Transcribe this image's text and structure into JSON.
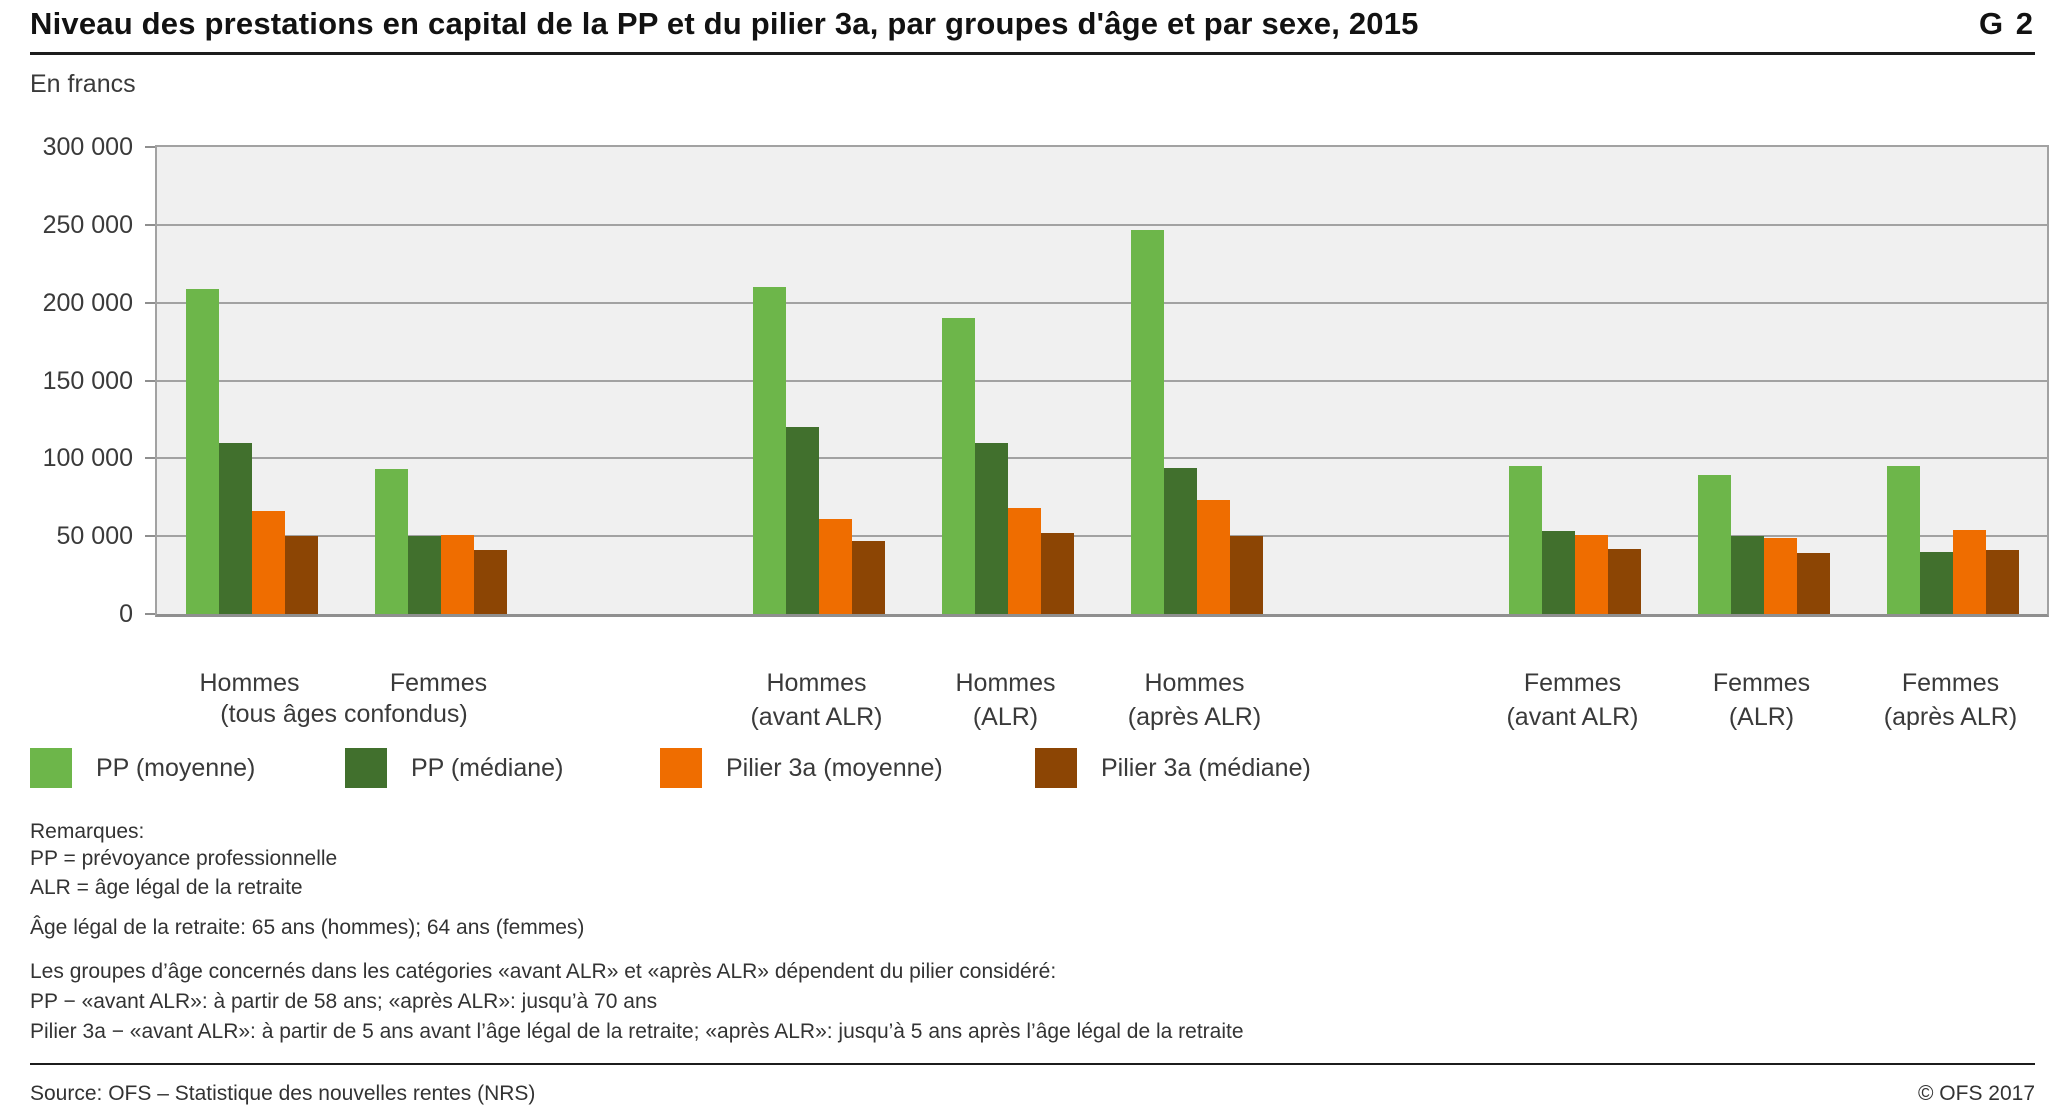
{
  "header": {
    "title": "Niveau des prestations en capital de la PP et du pilier 3a, par groupes d'âge et par sexe, 2015",
    "graph_id": "G 2"
  },
  "chart_data": {
    "type": "bar",
    "title": "Niveau des prestations en capital de la PP et du pilier 3a, par groupes d'âge et par sexe, 2015",
    "unit_label": "En francs",
    "ylim": [
      0,
      300000
    ],
    "ytick_step": 50000,
    "ytick_labels": [
      "0",
      "50 000",
      "100 000",
      "150 000",
      "200 000",
      "250 000",
      "300 000"
    ],
    "grid": true,
    "legend_position": "bottom",
    "plot_background": "#f0f0f0",
    "series": [
      {
        "name": "PP (moyenne)",
        "color": "#6db64a"
      },
      {
        "name": "PP (médiane)",
        "color": "#41702d"
      },
      {
        "name": "Pilier 3a (moyenne)",
        "color": "#ef6d00"
      },
      {
        "name": "Pilier 3a (médiane)",
        "color": "#8c4504"
      }
    ],
    "slots": 10,
    "groups": [
      {
        "slot": 0,
        "label": "Hommes",
        "sublabel": "",
        "values": [
          209000,
          110000,
          66000,
          50000
        ]
      },
      {
        "slot": 1,
        "label": "Femmes",
        "sublabel": "",
        "values": [
          93000,
          50000,
          51000,
          41000
        ]
      },
      {
        "slot": 3,
        "label": "Hommes",
        "sublabel": "(avant ALR)",
        "values": [
          210000,
          120000,
          61000,
          47000
        ]
      },
      {
        "slot": 4,
        "label": "Hommes",
        "sublabel": "(ALR)",
        "values": [
          190000,
          110000,
          68000,
          52000
        ]
      },
      {
        "slot": 5,
        "label": "Hommes",
        "sublabel": "(après ALR)",
        "values": [
          247000,
          94000,
          73000,
          50000
        ]
      },
      {
        "slot": 7,
        "label": "Femmes",
        "sublabel": "(avant ALR)",
        "values": [
          95000,
          53000,
          51000,
          42000
        ]
      },
      {
        "slot": 8,
        "label": "Femmes",
        "sublabel": "(ALR)",
        "values": [
          89000,
          50000,
          49000,
          39000
        ]
      },
      {
        "slot": 9,
        "label": "Femmes",
        "sublabel": "(après ALR)",
        "values": [
          95000,
          40000,
          54000,
          41000
        ]
      }
    ],
    "shared_sublabel": {
      "text": "(tous âges confondus)",
      "between_slots": [
        0,
        1
      ]
    }
  },
  "notes": {
    "remarks_title": "Remarques:",
    "remark_lines": [
      "PP = prévoyance professionnelle",
      "ALR = âge légal de la retraite"
    ],
    "age_line": "Âge légal de la retraite: 65 ans (hommes); 64 ans (femmes)",
    "detail_lines": [
      "Les groupes d’âge concernés dans les catégories «avant ALR» et «après ALR» dépendent du pilier considéré:",
      "PP − «avant ALR»: à partir de 58 ans; «après ALR»: jusqu’à 70 ans",
      "Pilier 3a − «avant ALR»: à partir de 5 ans avant l’âge légal de la retraite; «après ALR»: jusqu’à 5 ans après l’âge légal de la retraite"
    ]
  },
  "footer": {
    "source": "Source: OFS – Statistique des nouvelles rentes (NRS)",
    "copyright": "© OFS 2017"
  }
}
